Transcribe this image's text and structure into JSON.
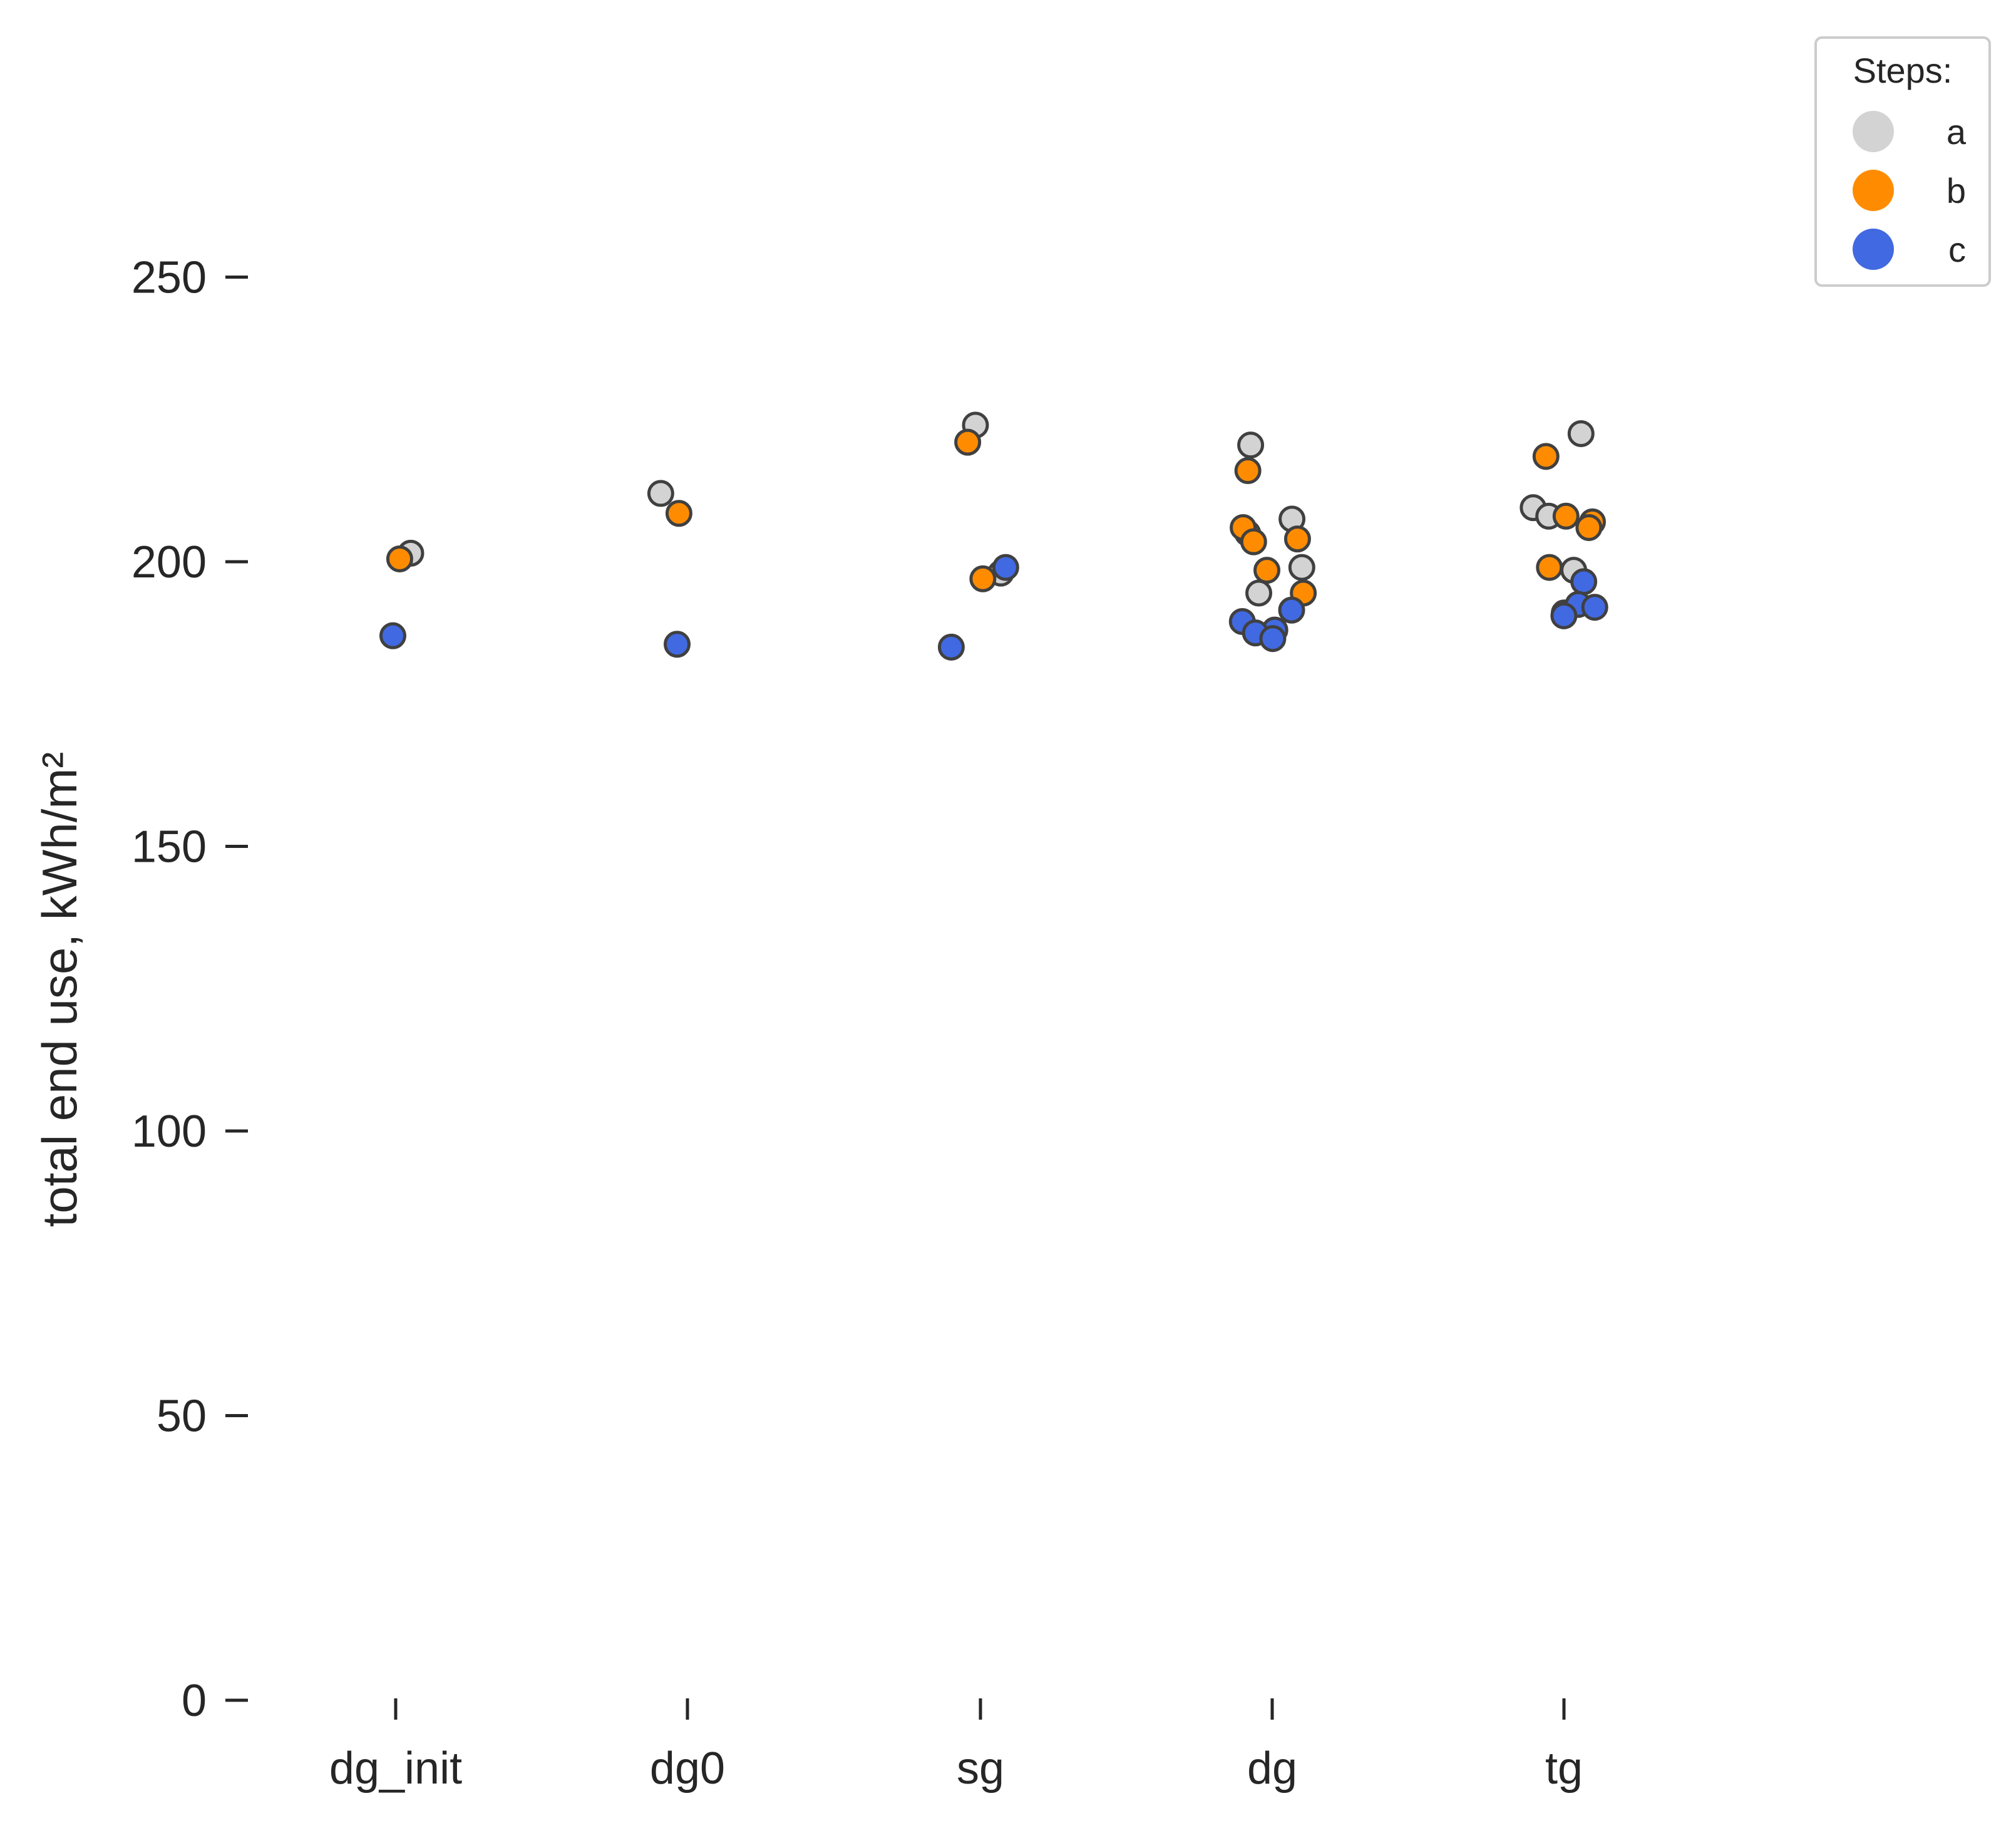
{
  "chart_data": {
    "type": "scatter",
    "subtype": "strip (jittered categorical)",
    "categories": [
      "dg_init",
      "dg0",
      "sg",
      "dg",
      "tg"
    ],
    "ylabel": "total end use, kWh/m²",
    "xlabel": "",
    "ylim": [
      0,
      285
    ],
    "yticks": [
      0,
      50,
      100,
      150,
      200,
      250
    ],
    "grid": false,
    "legend": {
      "title": "Steps:",
      "placement": "top-right"
    },
    "series": [
      {
        "name": "a",
        "color": "#d3d3d3",
        "points": [
          {
            "category": "dg_init",
            "y": 201.5
          },
          {
            "category": "dg0",
            "y": 212.0
          },
          {
            "category": "sg",
            "y": 224.0
          },
          {
            "category": "sg",
            "y": 198.0
          },
          {
            "category": "dg",
            "y": 220.5
          },
          {
            "category": "dg",
            "y": 207.5
          },
          {
            "category": "dg",
            "y": 205.0
          },
          {
            "category": "dg",
            "y": 199.0
          },
          {
            "category": "dg",
            "y": 194.5
          },
          {
            "category": "tg",
            "y": 222.5
          },
          {
            "category": "tg",
            "y": 209.5
          },
          {
            "category": "tg",
            "y": 208.0
          },
          {
            "category": "tg",
            "y": 198.5
          },
          {
            "category": "tg",
            "y": 191.0
          }
        ]
      },
      {
        "name": "b",
        "color": "#ff8c00",
        "points": [
          {
            "category": "dg_init",
            "y": 200.5
          },
          {
            "category": "dg0",
            "y": 208.5
          },
          {
            "category": "sg",
            "y": 221.0
          },
          {
            "category": "sg",
            "y": 197.0
          },
          {
            "category": "dg",
            "y": 216.0
          },
          {
            "category": "dg",
            "y": 206.0
          },
          {
            "category": "dg",
            "y": 204.0
          },
          {
            "category": "dg",
            "y": 203.5
          },
          {
            "category": "dg",
            "y": 198.5
          },
          {
            "category": "dg",
            "y": 194.5
          },
          {
            "category": "tg",
            "y": 218.5
          },
          {
            "category": "tg",
            "y": 208.0
          },
          {
            "category": "tg",
            "y": 207.0
          },
          {
            "category": "tg",
            "y": 206.0
          },
          {
            "category": "tg",
            "y": 199.0
          }
        ]
      },
      {
        "name": "c",
        "color": "#4169e1",
        "points": [
          {
            "category": "dg_init",
            "y": 187.0
          },
          {
            "category": "dg0",
            "y": 185.5
          },
          {
            "category": "sg",
            "y": 199.0
          },
          {
            "category": "sg",
            "y": 185.0
          },
          {
            "category": "dg",
            "y": 191.5
          },
          {
            "category": "dg",
            "y": 189.5
          },
          {
            "category": "dg",
            "y": 188.0
          },
          {
            "category": "dg",
            "y": 187.5
          },
          {
            "category": "dg",
            "y": 186.5
          },
          {
            "category": "tg",
            "y": 196.5
          },
          {
            "category": "tg",
            "y": 192.5
          },
          {
            "category": "tg",
            "y": 192.0
          },
          {
            "category": "tg",
            "y": 190.5
          }
        ]
      }
    ]
  }
}
